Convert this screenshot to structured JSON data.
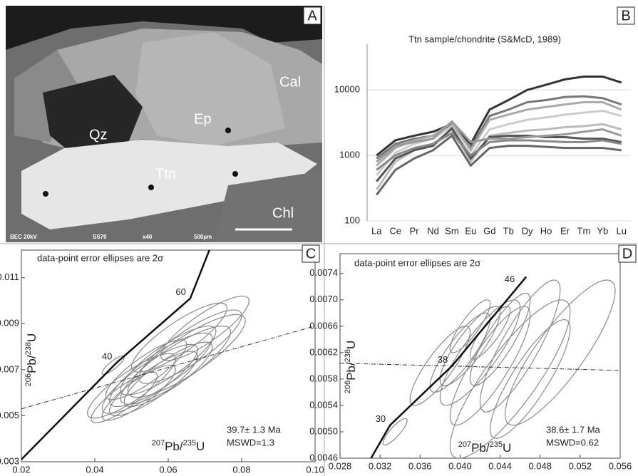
{
  "image_panel": {
    "label": "A",
    "minerals": [
      "Qz",
      "Ep",
      "Cal",
      "Ttn",
      "Chl"
    ],
    "scale_bar": [
      "BEC 20kV",
      "SS70",
      "x40",
      "500µm"
    ]
  },
  "chart_data": [
    {
      "type": "line",
      "panel_label": "B",
      "title": "Ttn sample/chondrite (S&McD, 1989)",
      "categories": [
        "La",
        "Ce",
        "Pr",
        "Nd",
        "Sm",
        "Eu",
        "Gd",
        "Tb",
        "Dy",
        "Ho",
        "Er",
        "Tm",
        "Yb",
        "Lu"
      ],
      "series": [
        {
          "color": "#333333",
          "values": [
            1000,
            1700,
            2000,
            2300,
            3000,
            1500,
            5000,
            7000,
            10000,
            12000,
            14500,
            16000,
            16000,
            13000
          ]
        },
        {
          "color": "#777777",
          "values": [
            900,
            1500,
            1800,
            2000,
            3000,
            1300,
            4000,
            5000,
            6500,
            7000,
            7800,
            8000,
            7500,
            6000
          ]
        },
        {
          "color": "#aaaaaa",
          "values": [
            700,
            1300,
            1700,
            2000,
            3200,
            1200,
            3500,
            4200,
            5000,
            5500,
            6000,
            6500,
            6500,
            5000
          ]
        },
        {
          "color": "#cccccc",
          "values": [
            500,
            1100,
            1500,
            1800,
            2800,
            1000,
            2500,
            3000,
            3500,
            3800,
            4200,
            4500,
            4800,
            4000
          ]
        },
        {
          "color": "#bbbbbb",
          "values": [
            300,
            800,
            1200,
            1500,
            2500,
            800,
            2000,
            2200,
            2400,
            2500,
            2700,
            2800,
            3000,
            2500
          ]
        },
        {
          "color": "#555555",
          "values": [
            400,
            900,
            1200,
            1400,
            2600,
            900,
            1900,
            2000,
            2000,
            1900,
            1900,
            1800,
            1800,
            1600
          ]
        },
        {
          "color": "#888888",
          "values": [
            600,
            1000,
            1300,
            1500,
            2200,
            1000,
            1600,
            1700,
            1700,
            1650,
            1600,
            1600,
            1700,
            1500
          ]
        },
        {
          "color": "#666666",
          "values": [
            250,
            600,
            900,
            1200,
            2000,
            700,
            1300,
            1400,
            1400,
            1350,
            1300,
            1300,
            1300,
            1200
          ]
        },
        {
          "color": "#999999",
          "values": [
            800,
            1400,
            1600,
            1800,
            3300,
            1600,
            1800,
            1800,
            1900,
            2000,
            2100,
            2300,
            2500,
            2000
          ]
        }
      ],
      "ylim": [
        100,
        50000
      ],
      "yticks": [
        100,
        1000,
        10000
      ],
      "log_scale": true,
      "grid": true
    },
    {
      "type": "ellipse",
      "panel_label": "C",
      "annotation": "data-point error ellipses are 2σ",
      "x_label": [
        "207",
        "Pb/",
        "235",
        "U"
      ],
      "y_label": [
        "206",
        "Pb/",
        "238",
        "U"
      ],
      "result": [
        "39.7± 1.3 Ma",
        "MSWD=1.3"
      ],
      "xlim": [
        0.02,
        0.1
      ],
      "xticks": [
        0.02,
        0.04,
        0.06,
        0.08,
        {
          "value": 0.1,
          "label": "0.10"
        }
      ],
      "ylim": [
        0.003,
        0.0122
      ],
      "yticks": [
        0.003,
        0.005,
        0.007,
        0.009,
        0.011
      ],
      "concordia": {
        "x": [
          0.02,
          0.0459,
          0.066,
          0.0717
        ],
        "y": [
          0.0031,
          0.0073,
          0.0101,
          0.0124
        ],
        "age_labels": [
          null,
          "40",
          "60",
          null
        ]
      },
      "reference_line": {
        "x": [
          0.02,
          0.1
        ],
        "y": [
          0.0053,
          0.0089
        ]
      },
      "error_correlation": 0.85,
      "color": "#8a8a8a",
      "points": {
        "x": [
          0.05,
          0.055,
          0.058,
          0.06,
          0.062,
          0.065,
          0.052,
          0.056,
          0.06,
          0.066,
          0.048,
          0.054,
          0.063,
          0.07,
          0.045
        ],
        "y": [
          0.0063,
          0.0066,
          0.007,
          0.0068,
          0.0072,
          0.0076,
          0.006,
          0.0064,
          0.0074,
          0.008,
          0.0058,
          0.007,
          0.0084,
          0.0088,
          0.0072
        ],
        "x_err": [
          0.012,
          0.013,
          0.014,
          0.012,
          0.015,
          0.016,
          0.01,
          0.012,
          0.013,
          0.014,
          0.009,
          0.011,
          0.013,
          0.012,
          0.003
        ],
        "y_err": [
          0.0014,
          0.0015,
          0.0016,
          0.0014,
          0.0017,
          0.0018,
          0.0012,
          0.0014,
          0.0015,
          0.0016,
          0.0011,
          0.0013,
          0.0015,
          0.0014,
          0.0004
        ]
      }
    },
    {
      "type": "ellipse",
      "panel_label": "D",
      "annotation": "data-point error ellipses are 2σ",
      "x_label": [
        "207",
        "Pb/",
        "235",
        "U"
      ],
      "y_label": [
        "206",
        "Pb/",
        "238",
        "U"
      ],
      "result": [
        "38.6± 1.7 Ma",
        "MSWD=0.62"
      ],
      "xlim": [
        0.028,
        0.056
      ],
      "xticks": [
        0.028,
        0.032,
        0.036,
        {
          "value": 0.04,
          "label": "0.040"
        },
        0.044,
        0.048,
        0.052,
        0.056
      ],
      "ylim": [
        0.0046,
        0.0077
      ],
      "yticks": [
        0.0046,
        {
          "value": 0.005,
          "label": "0.0050"
        },
        0.0054,
        0.0058,
        0.0062,
        0.0066,
        {
          "value": 0.007,
          "label": "0.0070"
        },
        0.0074
      ],
      "concordia": {
        "x": [
          0.0311,
          0.033,
          0.0392,
          0.0459,
          0.0466
        ],
        "y": [
          0.0046,
          0.0051,
          0.006,
          0.00722,
          0.00735
        ],
        "age_labels": [
          null,
          "30",
          "38",
          "46",
          null
        ]
      },
      "reference_line": {
        "x": [
          0.028,
          0.056
        ],
        "y": [
          0.00604,
          0.00593
        ]
      },
      "error_correlation": 0.85,
      "color": "#8a8a8a",
      "points": {
        "x": [
          0.04,
          0.041,
          0.042,
          0.043,
          0.044,
          0.045,
          0.046,
          0.047,
          0.05,
          0.041,
          0.043,
          0.038,
          0.0335
        ],
        "y": [
          0.0062,
          0.0063,
          0.0062,
          0.006,
          0.0064,
          0.0058,
          0.0063,
          0.0058,
          0.0062,
          0.0066,
          0.0065,
          0.006,
          0.005
        ],
        "x_err": [
          0.003,
          0.003,
          0.004,
          0.004,
          0.003,
          0.006,
          0.004,
          0.004,
          0.0055,
          0.002,
          0.002,
          0.003,
          0.0012
        ],
        "y_err": [
          0.0006,
          0.0006,
          0.0008,
          0.0009,
          0.0007,
          0.0012,
          0.001,
          0.0009,
          0.0011,
          0.0004,
          0.0004,
          0.0006,
          0.0002
        ]
      }
    }
  ]
}
